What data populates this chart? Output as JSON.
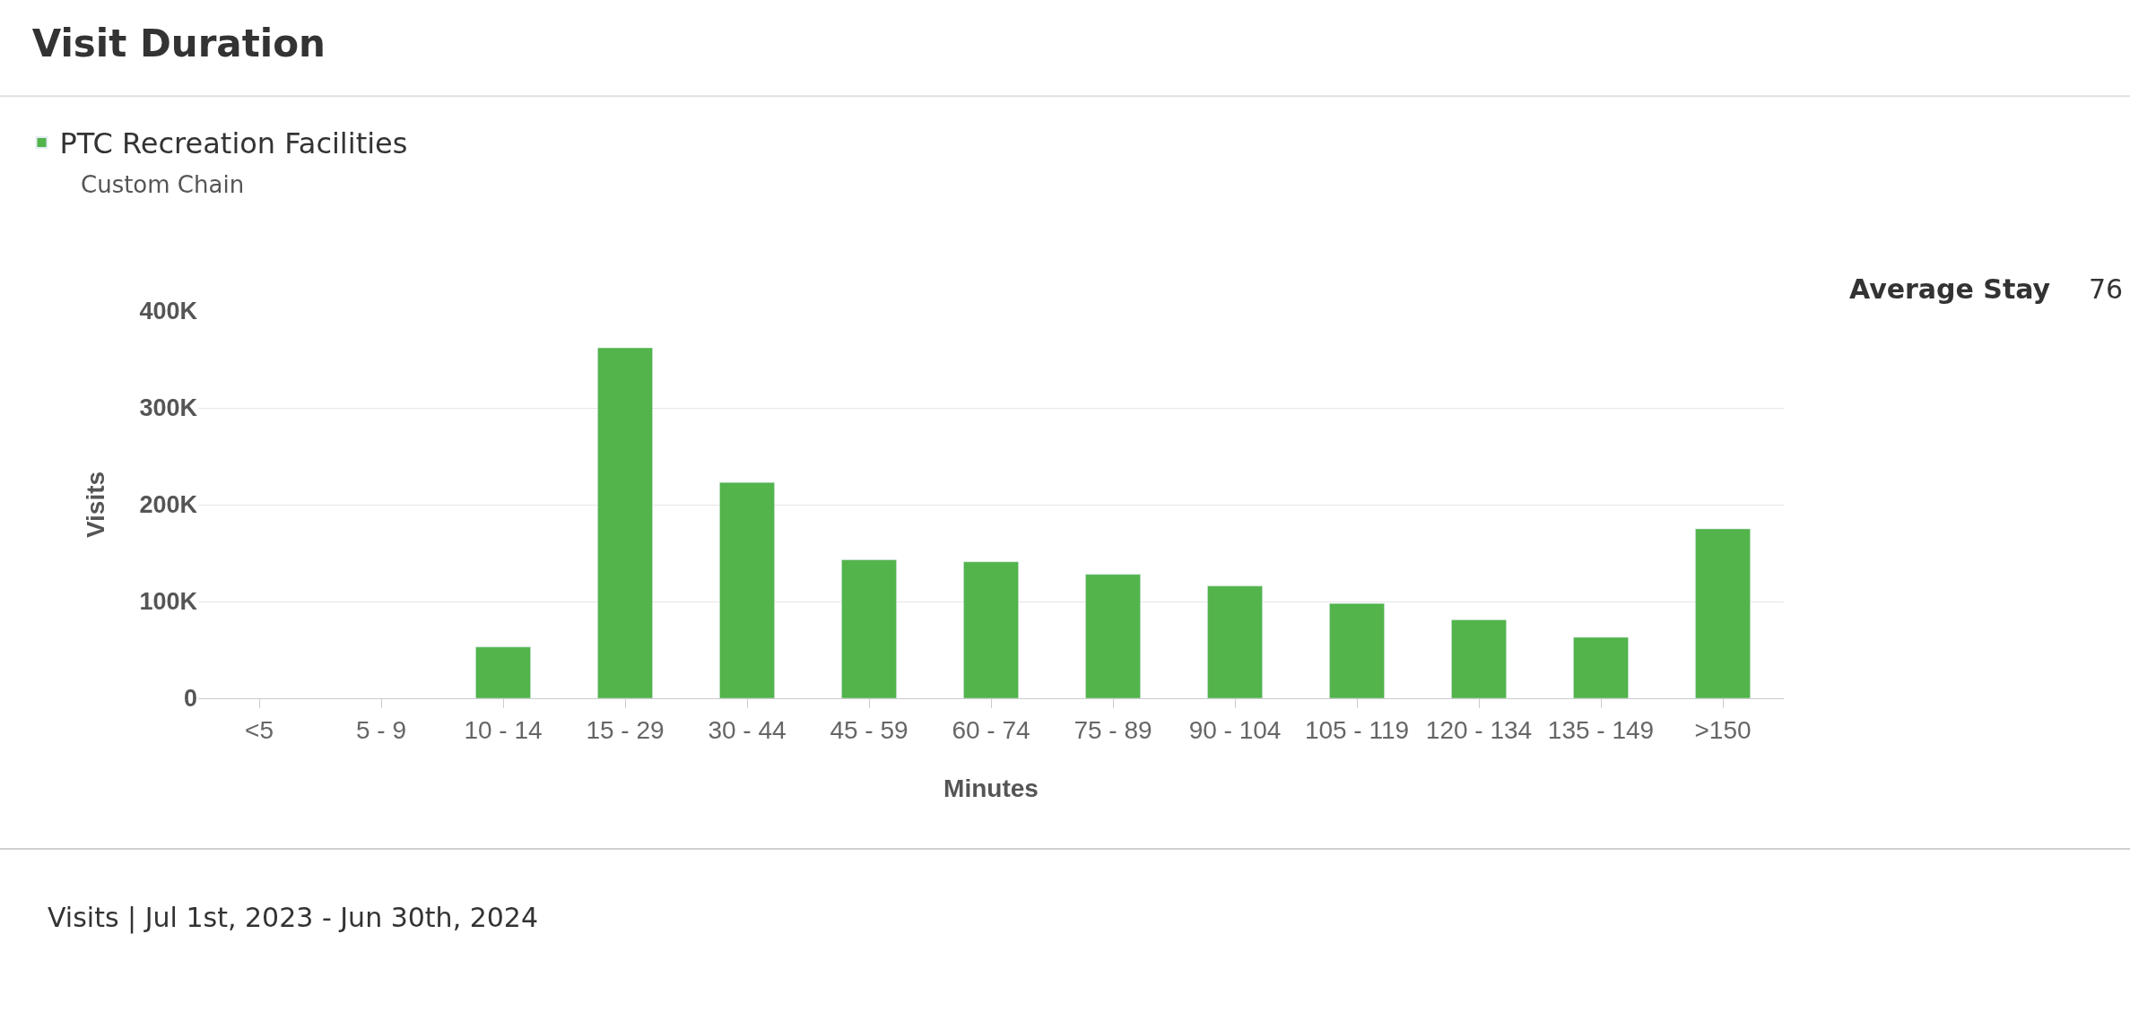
{
  "chart_data": {
    "type": "bar",
    "title": "Visit Duration",
    "subtitle": "Custom Chain",
    "xlabel": "Minutes",
    "ylabel": "Visits",
    "categories": [
      "<5",
      "5 - 9",
      "10 - 14",
      "15 - 29",
      "30 - 44",
      "45 - 59",
      "60 - 74",
      "75 - 89",
      "90 - 104",
      "105 - 119",
      "120 - 134",
      "135 - 149",
      ">150"
    ],
    "series": [
      {
        "name": "PTC Recreation Facilities",
        "color": "#52b44b",
        "values": [
          null,
          null,
          53000,
          362000,
          223000,
          143000,
          141000,
          128000,
          116000,
          98000,
          81000,
          63000,
          175000
        ]
      }
    ],
    "ylim": [
      0,
      400000
    ],
    "yticks": [
      {
        "value": 0,
        "label": "0"
      },
      {
        "value": 100000,
        "label": "100K"
      },
      {
        "value": 200000,
        "label": "200K"
      },
      {
        "value": 300000,
        "label": "300K"
      },
      {
        "value": 400000,
        "label": "400K"
      }
    ],
    "grid": "y",
    "legend": "top left",
    "annotations": [
      "Average Stay",
      "76",
      "Visits | Jul 1st, 2023 - Jun 30th, 2024"
    ]
  }
}
